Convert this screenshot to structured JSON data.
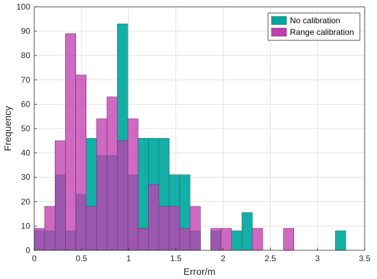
{
  "chart_data": {
    "type": "bar",
    "subtype": "overlapping-histogram",
    "xlabel": "Error/m",
    "ylabel": "Frequency",
    "xlim": [
      0,
      3.5
    ],
    "ylim": [
      0,
      100
    ],
    "xticks": [
      "0",
      "0.5",
      "1",
      "1.5",
      "2",
      "2.5",
      "3",
      "3.5"
    ],
    "yticks": [
      "0",
      "10",
      "20",
      "30",
      "40",
      "50",
      "60",
      "70",
      "80",
      "90",
      "100"
    ],
    "grid": true,
    "legend_position": "top-right",
    "series": [
      {
        "name": "No  calibration",
        "color": "#00a8a0",
        "bins": [
          {
            "x0": 0.0,
            "x1": 0.11,
            "value": 8
          },
          {
            "x0": 0.11,
            "x1": 0.22,
            "value": 8
          },
          {
            "x0": 0.22,
            "x1": 0.33,
            "value": 31
          },
          {
            "x0": 0.33,
            "x1": 0.44,
            "value": 8
          },
          {
            "x0": 0.44,
            "x1": 0.55,
            "value": 23
          },
          {
            "x0": 0.55,
            "x1": 0.66,
            "value": 46
          },
          {
            "x0": 0.66,
            "x1": 0.77,
            "value": 39
          },
          {
            "x0": 0.77,
            "x1": 0.88,
            "value": 39
          },
          {
            "x0": 0.88,
            "x1": 0.99,
            "value": 93
          },
          {
            "x0": 0.99,
            "x1": 1.1,
            "value": 31
          },
          {
            "x0": 1.1,
            "x1": 1.21,
            "value": 46
          },
          {
            "x0": 1.21,
            "x1": 1.32,
            "value": 46
          },
          {
            "x0": 1.32,
            "x1": 1.43,
            "value": 46
          },
          {
            "x0": 1.43,
            "x1": 1.54,
            "value": 31
          },
          {
            "x0": 1.54,
            "x1": 1.65,
            "value": 31
          },
          {
            "x0": 1.65,
            "x1": 1.76,
            "value": 8
          },
          {
            "x0": 1.76,
            "x1": 1.87,
            "value": 0
          },
          {
            "x0": 1.87,
            "x1": 1.98,
            "value": 8
          },
          {
            "x0": 1.98,
            "x1": 2.09,
            "value": 0
          },
          {
            "x0": 2.09,
            "x1": 2.2,
            "value": 8
          },
          {
            "x0": 2.2,
            "x1": 2.31,
            "value": 15.5
          },
          {
            "x0": 2.31,
            "x1": 2.42,
            "value": 0
          },
          {
            "x0": 2.42,
            "x1": 2.53,
            "value": 0
          },
          {
            "x0": 2.53,
            "x1": 2.64,
            "value": 0
          },
          {
            "x0": 2.64,
            "x1": 2.75,
            "value": 0
          },
          {
            "x0": 2.75,
            "x1": 2.86,
            "value": 0
          },
          {
            "x0": 2.86,
            "x1": 2.97,
            "value": 0
          },
          {
            "x0": 2.97,
            "x1": 3.08,
            "value": 0
          },
          {
            "x0": 3.08,
            "x1": 3.19,
            "value": 0
          },
          {
            "x0": 3.19,
            "x1": 3.3,
            "value": 8
          }
        ]
      },
      {
        "name": "Range calibration",
        "color": "#c040b0",
        "bins": [
          {
            "x0": 0.0,
            "x1": 0.11,
            "value": 9
          },
          {
            "x0": 0.11,
            "x1": 0.22,
            "value": 18
          },
          {
            "x0": 0.22,
            "x1": 0.33,
            "value": 45
          },
          {
            "x0": 0.33,
            "x1": 0.44,
            "value": 89
          },
          {
            "x0": 0.44,
            "x1": 0.55,
            "value": 72
          },
          {
            "x0": 0.55,
            "x1": 0.66,
            "value": 18
          },
          {
            "x0": 0.66,
            "x1": 0.77,
            "value": 54
          },
          {
            "x0": 0.77,
            "x1": 0.88,
            "value": 63
          },
          {
            "x0": 0.88,
            "x1": 0.99,
            "value": 45
          },
          {
            "x0": 0.99,
            "x1": 1.1,
            "value": 54
          },
          {
            "x0": 1.1,
            "x1": 1.21,
            "value": 9
          },
          {
            "x0": 1.21,
            "x1": 1.32,
            "value": 27
          },
          {
            "x0": 1.32,
            "x1": 1.43,
            "value": 18
          },
          {
            "x0": 1.43,
            "x1": 1.54,
            "value": 18
          },
          {
            "x0": 1.54,
            "x1": 1.65,
            "value": 9
          },
          {
            "x0": 1.65,
            "x1": 1.76,
            "value": 18
          },
          {
            "x0": 1.76,
            "x1": 1.87,
            "value": 0
          },
          {
            "x0": 1.87,
            "x1": 1.98,
            "value": 9
          },
          {
            "x0": 1.98,
            "x1": 2.09,
            "value": 9
          },
          {
            "x0": 2.09,
            "x1": 2.2,
            "value": 0
          },
          {
            "x0": 2.2,
            "x1": 2.31,
            "value": 0
          },
          {
            "x0": 2.31,
            "x1": 2.42,
            "value": 9
          },
          {
            "x0": 2.42,
            "x1": 2.53,
            "value": 0
          },
          {
            "x0": 2.53,
            "x1": 2.64,
            "value": 0
          },
          {
            "x0": 2.64,
            "x1": 2.75,
            "value": 9
          },
          {
            "x0": 2.75,
            "x1": 2.86,
            "value": 0
          }
        ]
      }
    ]
  }
}
